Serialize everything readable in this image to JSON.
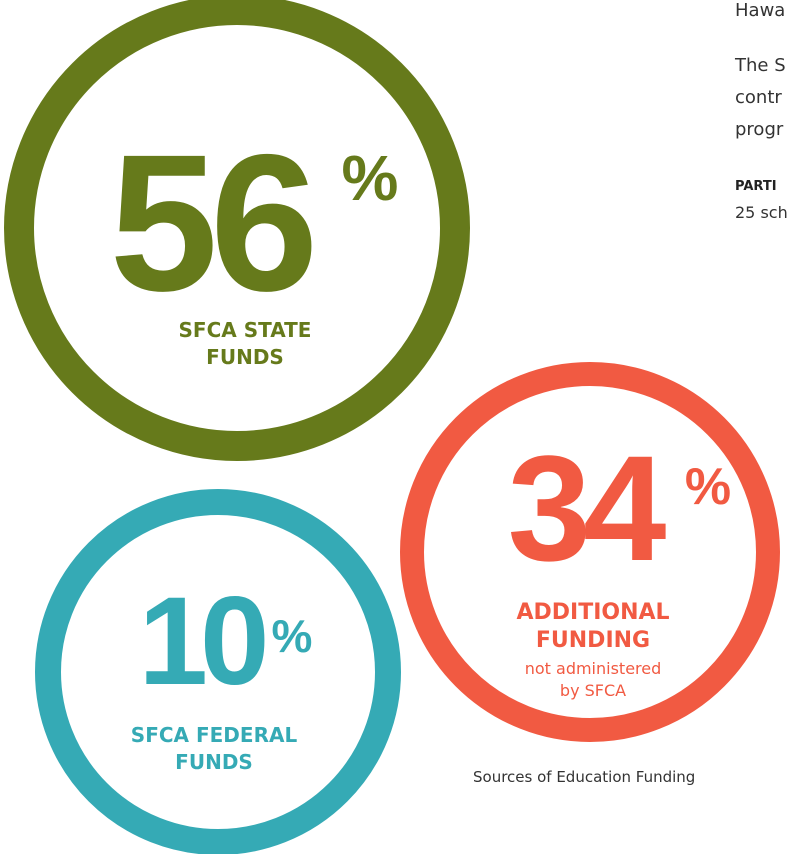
{
  "percent_sign": "%",
  "circles": [
    {
      "percent": 56,
      "label_lines": [
        "SFCA STATE",
        "FUNDS"
      ],
      "color": "#667a1b"
    },
    {
      "percent": 34,
      "label_lines": [
        "ADDITIONAL",
        "FUNDING"
      ],
      "note_lines": [
        "not administered",
        "by SFCA"
      ],
      "color": "#f15a42"
    },
    {
      "percent": 10,
      "label_lines": [
        "SFCA FEDERAL",
        "FUNDS"
      ],
      "color": "#35aab5"
    }
  ],
  "caption": "Sources of Education Funding",
  "side_text": {
    "line_1": "Hawa",
    "paragraph_lines": [
      "The S",
      "contr",
      "progr"
    ],
    "heading": "PARTI",
    "detail": "25 sch"
  }
}
